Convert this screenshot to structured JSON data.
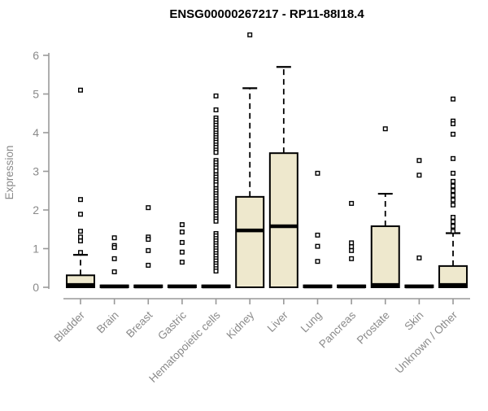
{
  "chart_data": {
    "type": "boxplot",
    "title": "ENSG00000267217 - RP11-88I18.4",
    "ylabel": "Expression",
    "xlabel": "",
    "ylim": [
      0,
      6.6
    ],
    "yticks": [
      0,
      1,
      2,
      3,
      4,
      5,
      6
    ],
    "grid": false,
    "legend": "none",
    "colors": {
      "box_fill": "#EEE8CD",
      "box_stroke": "#000000",
      "median": "#000000",
      "whisker": "#000000",
      "outlier_stroke": "#000000",
      "outlier_fill": "#ffffff",
      "axis": "#999999",
      "tick_label": "#8a8a8a",
      "title": "#000000",
      "background": "#ffffff"
    },
    "categories": [
      "Bladder",
      "Brain",
      "Breast",
      "Gastric",
      "Hematopoietic cells",
      "Kidney",
      "Liver",
      "Lung",
      "Pancreas",
      "Prostate",
      "Skin",
      "Unknown / Other"
    ],
    "series": [
      {
        "name": "Bladder",
        "whisker_low": 0,
        "q1": 0,
        "median": 0.06,
        "q3": 0.31,
        "whisker_high": 0.84,
        "outliers": [
          5.1,
          2.27,
          1.89,
          1.45,
          1.3,
          1.2,
          0.9
        ]
      },
      {
        "name": "Brain",
        "whisker_low": 0,
        "q1": 0,
        "median": 0.02,
        "q3": 0.05,
        "whisker_high": 0.05,
        "outliers": [
          1.28,
          1.08,
          1.03,
          0.74,
          0.4
        ]
      },
      {
        "name": "Breast",
        "whisker_low": 0,
        "q1": 0,
        "median": 0.02,
        "q3": 0.05,
        "whisker_high": 0.05,
        "outliers": [
          2.06,
          1.3,
          1.24,
          0.95,
          0.57
        ]
      },
      {
        "name": "Gastric",
        "whisker_low": 0,
        "q1": 0,
        "median": 0.02,
        "q3": 0.05,
        "whisker_high": 0.05,
        "outliers": [
          1.62,
          1.43,
          1.16,
          0.91,
          0.65
        ]
      },
      {
        "name": "Hematopoietic cells",
        "whisker_low": 0,
        "q1": 0,
        "median": 0.02,
        "q3": 0.05,
        "whisker_high": 0.05,
        "outliers": [
          4.95,
          4.59,
          4.38,
          4.32,
          4.25,
          4.19,
          4.12,
          4.06,
          3.99,
          3.93,
          3.87,
          3.81,
          3.75,
          3.68,
          3.62,
          3.55,
          3.49,
          3.28,
          3.22,
          3.15,
          3.09,
          3.01,
          2.91,
          2.85,
          2.78,
          2.72,
          2.65,
          2.55,
          2.49,
          2.42,
          2.36,
          2.29,
          2.23,
          2.16,
          2.1,
          2.03,
          1.97,
          1.9,
          1.84,
          1.77,
          1.71,
          1.39,
          1.33,
          1.26,
          1.2,
          1.13,
          1.07,
          1.0,
          0.94,
          0.87,
          0.81,
          0.74,
          0.68,
          0.61,
          0.55,
          0.48,
          0.42
        ]
      },
      {
        "name": "Kidney",
        "whisker_low": 0,
        "q1": 0,
        "median": 1.47,
        "q3": 2.34,
        "whisker_high": 5.15,
        "outliers": [
          6.53
        ]
      },
      {
        "name": "Liver",
        "whisker_low": 0,
        "q1": 0,
        "median": 1.58,
        "q3": 3.47,
        "whisker_high": 5.7,
        "outliers": []
      },
      {
        "name": "Lung",
        "whisker_low": 0,
        "q1": 0,
        "median": 0.02,
        "q3": 0.05,
        "whisker_high": 0.05,
        "outliers": [
          2.95,
          1.35,
          1.06,
          0.67
        ]
      },
      {
        "name": "Pancreas",
        "whisker_low": 0,
        "q1": 0,
        "median": 0.02,
        "q3": 0.05,
        "whisker_high": 0.05,
        "outliers": [
          2.17,
          1.15,
          1.05,
          0.95,
          0.74
        ]
      },
      {
        "name": "Prostate",
        "whisker_low": 0,
        "q1": 0,
        "median": 0.06,
        "q3": 1.58,
        "whisker_high": 2.42,
        "outliers": [
          4.1
        ]
      },
      {
        "name": "Skin",
        "whisker_low": 0,
        "q1": 0,
        "median": 0.02,
        "q3": 0.05,
        "whisker_high": 0.05,
        "outliers": [
          3.28,
          2.9,
          0.76
        ]
      },
      {
        "name": "Unknown / Other",
        "whisker_low": 0,
        "q1": 0,
        "median": 0.06,
        "q3": 0.55,
        "whisker_high": 1.4,
        "outliers": [
          4.87,
          4.3,
          4.23,
          3.96,
          3.33,
          2.95,
          2.74,
          2.62,
          2.5,
          2.38,
          2.26,
          2.13,
          1.81,
          1.7,
          1.58,
          1.45
        ]
      }
    ]
  }
}
